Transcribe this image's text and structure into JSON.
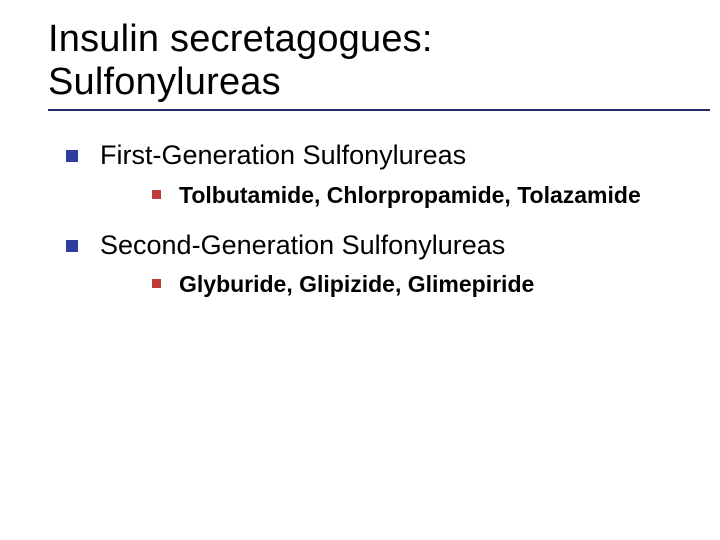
{
  "colors": {
    "text": "#000000",
    "background": "#ffffff",
    "bullet_lvl1": "#2f3e9e",
    "bullet_lvl2": "#c03a3a",
    "title_underline": "#1f2a6b"
  },
  "typography": {
    "title_fontsize_pt": 29,
    "lvl1_fontsize_pt": 20,
    "lvl2_fontsize_pt": 17,
    "lvl2_fontweight": "bold",
    "font_family": "Verdana"
  },
  "title": {
    "line1": "Insulin secretagogues:",
    "line2": "Sulfonylureas"
  },
  "items": [
    {
      "label": "First-Generation Sulfonylureas",
      "sub": "Tolbutamide, Chlorpropamide, Tolazamide"
    },
    {
      "label": "Second-Generation Sulfonylureas",
      "sub": "Glyburide, Glipizide, Glimepiride"
    }
  ]
}
